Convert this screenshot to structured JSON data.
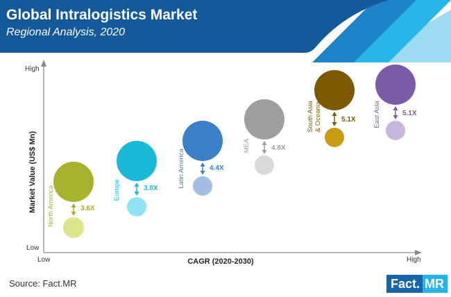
{
  "header": {
    "title": "Global Intralogistics Market",
    "subtitle": "Regional Analysis, 2020"
  },
  "chart_data": {
    "type": "scatter",
    "title": "Global Intralogistics Market",
    "subtitle": "Regional Analysis, 2020",
    "xlabel": "CAGR (2020-2030)",
    "ylabel": "Market Value (US$ Mn)",
    "x_tick_labels": [
      "Low",
      "High"
    ],
    "y_tick_labels": [
      "Low",
      "High"
    ],
    "grid": false,
    "legend": "none",
    "series": [
      {
        "region": "North America",
        "growth": "3.6X",
        "color": "#a7b12b",
        "light_color": "#dde58a"
      },
      {
        "region": "Europe",
        "growth": "3.8X",
        "color": "#19b9d7",
        "light_color": "#8ee4f3"
      },
      {
        "region": "Latin America",
        "growth": "4.4X",
        "color": "#3c7fc9",
        "light_color": "#a2bee4"
      },
      {
        "region": "MEA",
        "growth": "4.8X",
        "color": "#9e9e9e",
        "light_color": "#d9d9d9"
      },
      {
        "region": "South Asia & Oceania",
        "growth": "5.1X",
        "color": "#7d5a00",
        "light_color": "#c99b12"
      },
      {
        "region": "East Asia",
        "growth": "5.1X",
        "color": "#7b5aa7",
        "light_color": "#c9b7df"
      }
    ]
  },
  "footer": {
    "source": "Source: Fact.MR",
    "logo_fact": "Fact.",
    "logo_mr": "MR"
  }
}
